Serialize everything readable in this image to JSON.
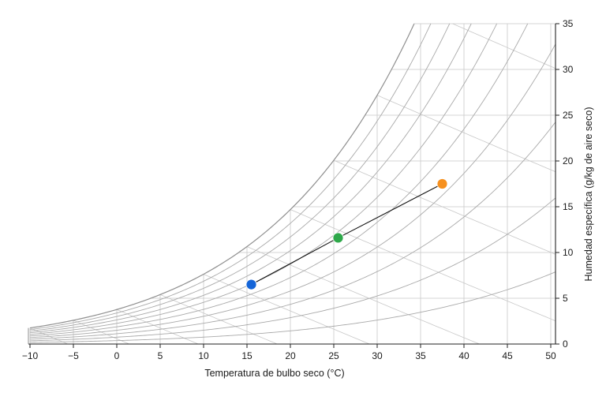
{
  "chart_data": {
    "type": "scatter",
    "title": "",
    "xlabel": "Temperatura de bulbo seco (°C)",
    "ylabel": "Humedad específica (g/kg de aire seco)",
    "xlim": [
      -10,
      52
    ],
    "ylim": [
      0,
      35
    ],
    "x_ticks": [
      "−10",
      "−5",
      "0",
      "5",
      "10",
      "15",
      "20",
      "25",
      "30",
      "35",
      "40",
      "45",
      "50"
    ],
    "y_ticks": [
      "0",
      "5",
      "10",
      "15",
      "20",
      "25",
      "30",
      "35"
    ],
    "grid": true,
    "y_axis_side": "right",
    "relative_humidity_curves": [
      10,
      20,
      30,
      40,
      50,
      60,
      70,
      80,
      90,
      100
    ],
    "points": [
      {
        "x": 15.5,
        "y": 6.5,
        "color": "#1565d8"
      },
      {
        "x": 25.5,
        "y": 11.6,
        "color": "#2ea84a"
      },
      {
        "x": 37.5,
        "y": 17.5,
        "color": "#f6901e"
      }
    ],
    "process_line": true,
    "colors": {
      "grid": "#c8c8c8",
      "curve": "#a9a9a9",
      "axis": "#222222",
      "process": "#111111"
    }
  }
}
